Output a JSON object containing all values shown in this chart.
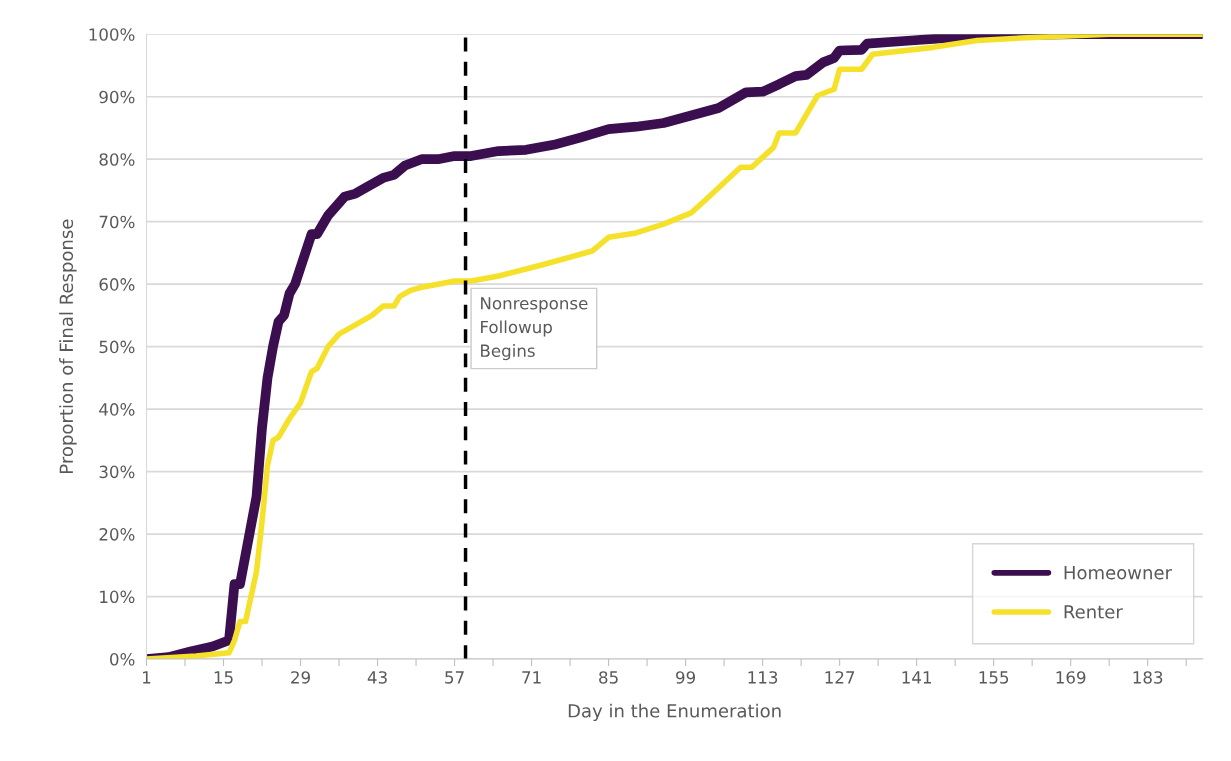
{
  "chart_data": {
    "type": "line",
    "xlabel": "Day in the Enumeration",
    "ylabel": "Proportion of Final Response",
    "xlim": [
      1,
      193
    ],
    "xticks": [
      1,
      {
        "value": 8,
        "label": null
      },
      15,
      {
        "value": 22,
        "label": null
      },
      29,
      {
        "value": 36,
        "label": null
      },
      43,
      {
        "value": 50,
        "label": null
      },
      57,
      {
        "value": 64,
        "label": null
      },
      71,
      {
        "value": 78,
        "label": null
      },
      85,
      {
        "value": 92,
        "label": null
      },
      99,
      {
        "value": 106,
        "label": null
      },
      113,
      {
        "value": 120,
        "label": null
      },
      127,
      {
        "value": 134,
        "label": null
      },
      141,
      {
        "value": 148,
        "label": null
      },
      155,
      {
        "value": 162,
        "label": null
      },
      169,
      {
        "value": 176,
        "label": null
      },
      183,
      {
        "value": 190,
        "label": null
      }
    ],
    "ylim": [
      0,
      100
    ],
    "yticks": [
      {
        "value": 0,
        "label": "0%"
      },
      {
        "value": 10,
        "label": "10%"
      },
      {
        "value": 20,
        "label": "20%"
      },
      {
        "value": 30,
        "label": "30%"
      },
      {
        "value": 40,
        "label": "40%"
      },
      {
        "value": 50,
        "label": "50%"
      },
      {
        "value": 60,
        "label": "60%"
      },
      {
        "value": 70,
        "label": "70%"
      },
      {
        "value": 80,
        "label": "80%"
      },
      {
        "value": 90,
        "label": "90%"
      },
      {
        "value": 100,
        "label": "100%"
      }
    ],
    "grid": "y",
    "legend": "bottom right",
    "line_style": "solid",
    "marker": "none",
    "ref_lines": [
      {
        "axis": "x",
        "value": 59,
        "label": "Nonresponse\nFollowup\nBegins",
        "color": "#000000",
        "line_style": "dashed"
      }
    ],
    "series": [
      {
        "name": "Homeowner",
        "color": "#3b0f4f",
        "x": [
          1,
          5,
          9,
          13,
          16,
          17,
          18,
          21,
          22,
          23,
          24,
          25,
          26,
          27,
          28,
          31,
          32,
          34,
          37,
          39,
          41,
          44,
          46,
          48,
          51,
          54,
          57,
          60,
          65,
          70,
          75,
          80,
          85,
          90,
          95,
          100,
          105,
          110,
          113,
          116,
          119,
          121,
          124,
          126,
          127,
          131,
          132,
          140,
          148,
          160,
          170,
          193
        ],
        "values": [
          0,
          0.3,
          1.2,
          2,
          3,
          12,
          12,
          26,
          37,
          45,
          50,
          54,
          55,
          58.5,
          60,
          68,
          68,
          71,
          74,
          74.5,
          75.5,
          77,
          77.5,
          79,
          80,
          80,
          80.5,
          80.5,
          81.3,
          81.5,
          82.3,
          83.5,
          84.8,
          85.2,
          85.8,
          87,
          88.2,
          90.7,
          90.8,
          92,
          93.3,
          93.5,
          95.5,
          96.2,
          97.4,
          97.5,
          98.5,
          99,
          99.5,
          99.9,
          100,
          100
        ]
      },
      {
        "name": "Renter",
        "color": "#f5e12a",
        "x": [
          1,
          10,
          16,
          17,
          18,
          19,
          20,
          21,
          22,
          23,
          24,
          25,
          27,
          29,
          31,
          32,
          34,
          36,
          38,
          40,
          42,
          44,
          46,
          47,
          49,
          51,
          54,
          57,
          60,
          65,
          73,
          82,
          85,
          90,
          95,
          100,
          103,
          109,
          111,
          115,
          116,
          119,
          123,
          126,
          127,
          131,
          133,
          144,
          152,
          160,
          176,
          185,
          193
        ],
        "values": [
          0,
          0.5,
          1,
          3,
          6,
          6,
          10,
          14,
          22,
          31,
          35,
          35.5,
          38.5,
          41,
          46,
          46.5,
          50,
          52,
          53,
          54,
          55,
          56.5,
          56.5,
          58,
          59,
          59.5,
          60,
          60.5,
          60.5,
          61.3,
          63.1,
          65.3,
          67.5,
          68.2,
          69.6,
          71.4,
          73.8,
          78.7,
          78.7,
          81.9,
          84.2,
          84.2,
          90.2,
          91.2,
          94.4,
          94.4,
          96.8,
          97.9,
          99,
          99.4,
          100,
          100,
          100
        ]
      }
    ]
  }
}
